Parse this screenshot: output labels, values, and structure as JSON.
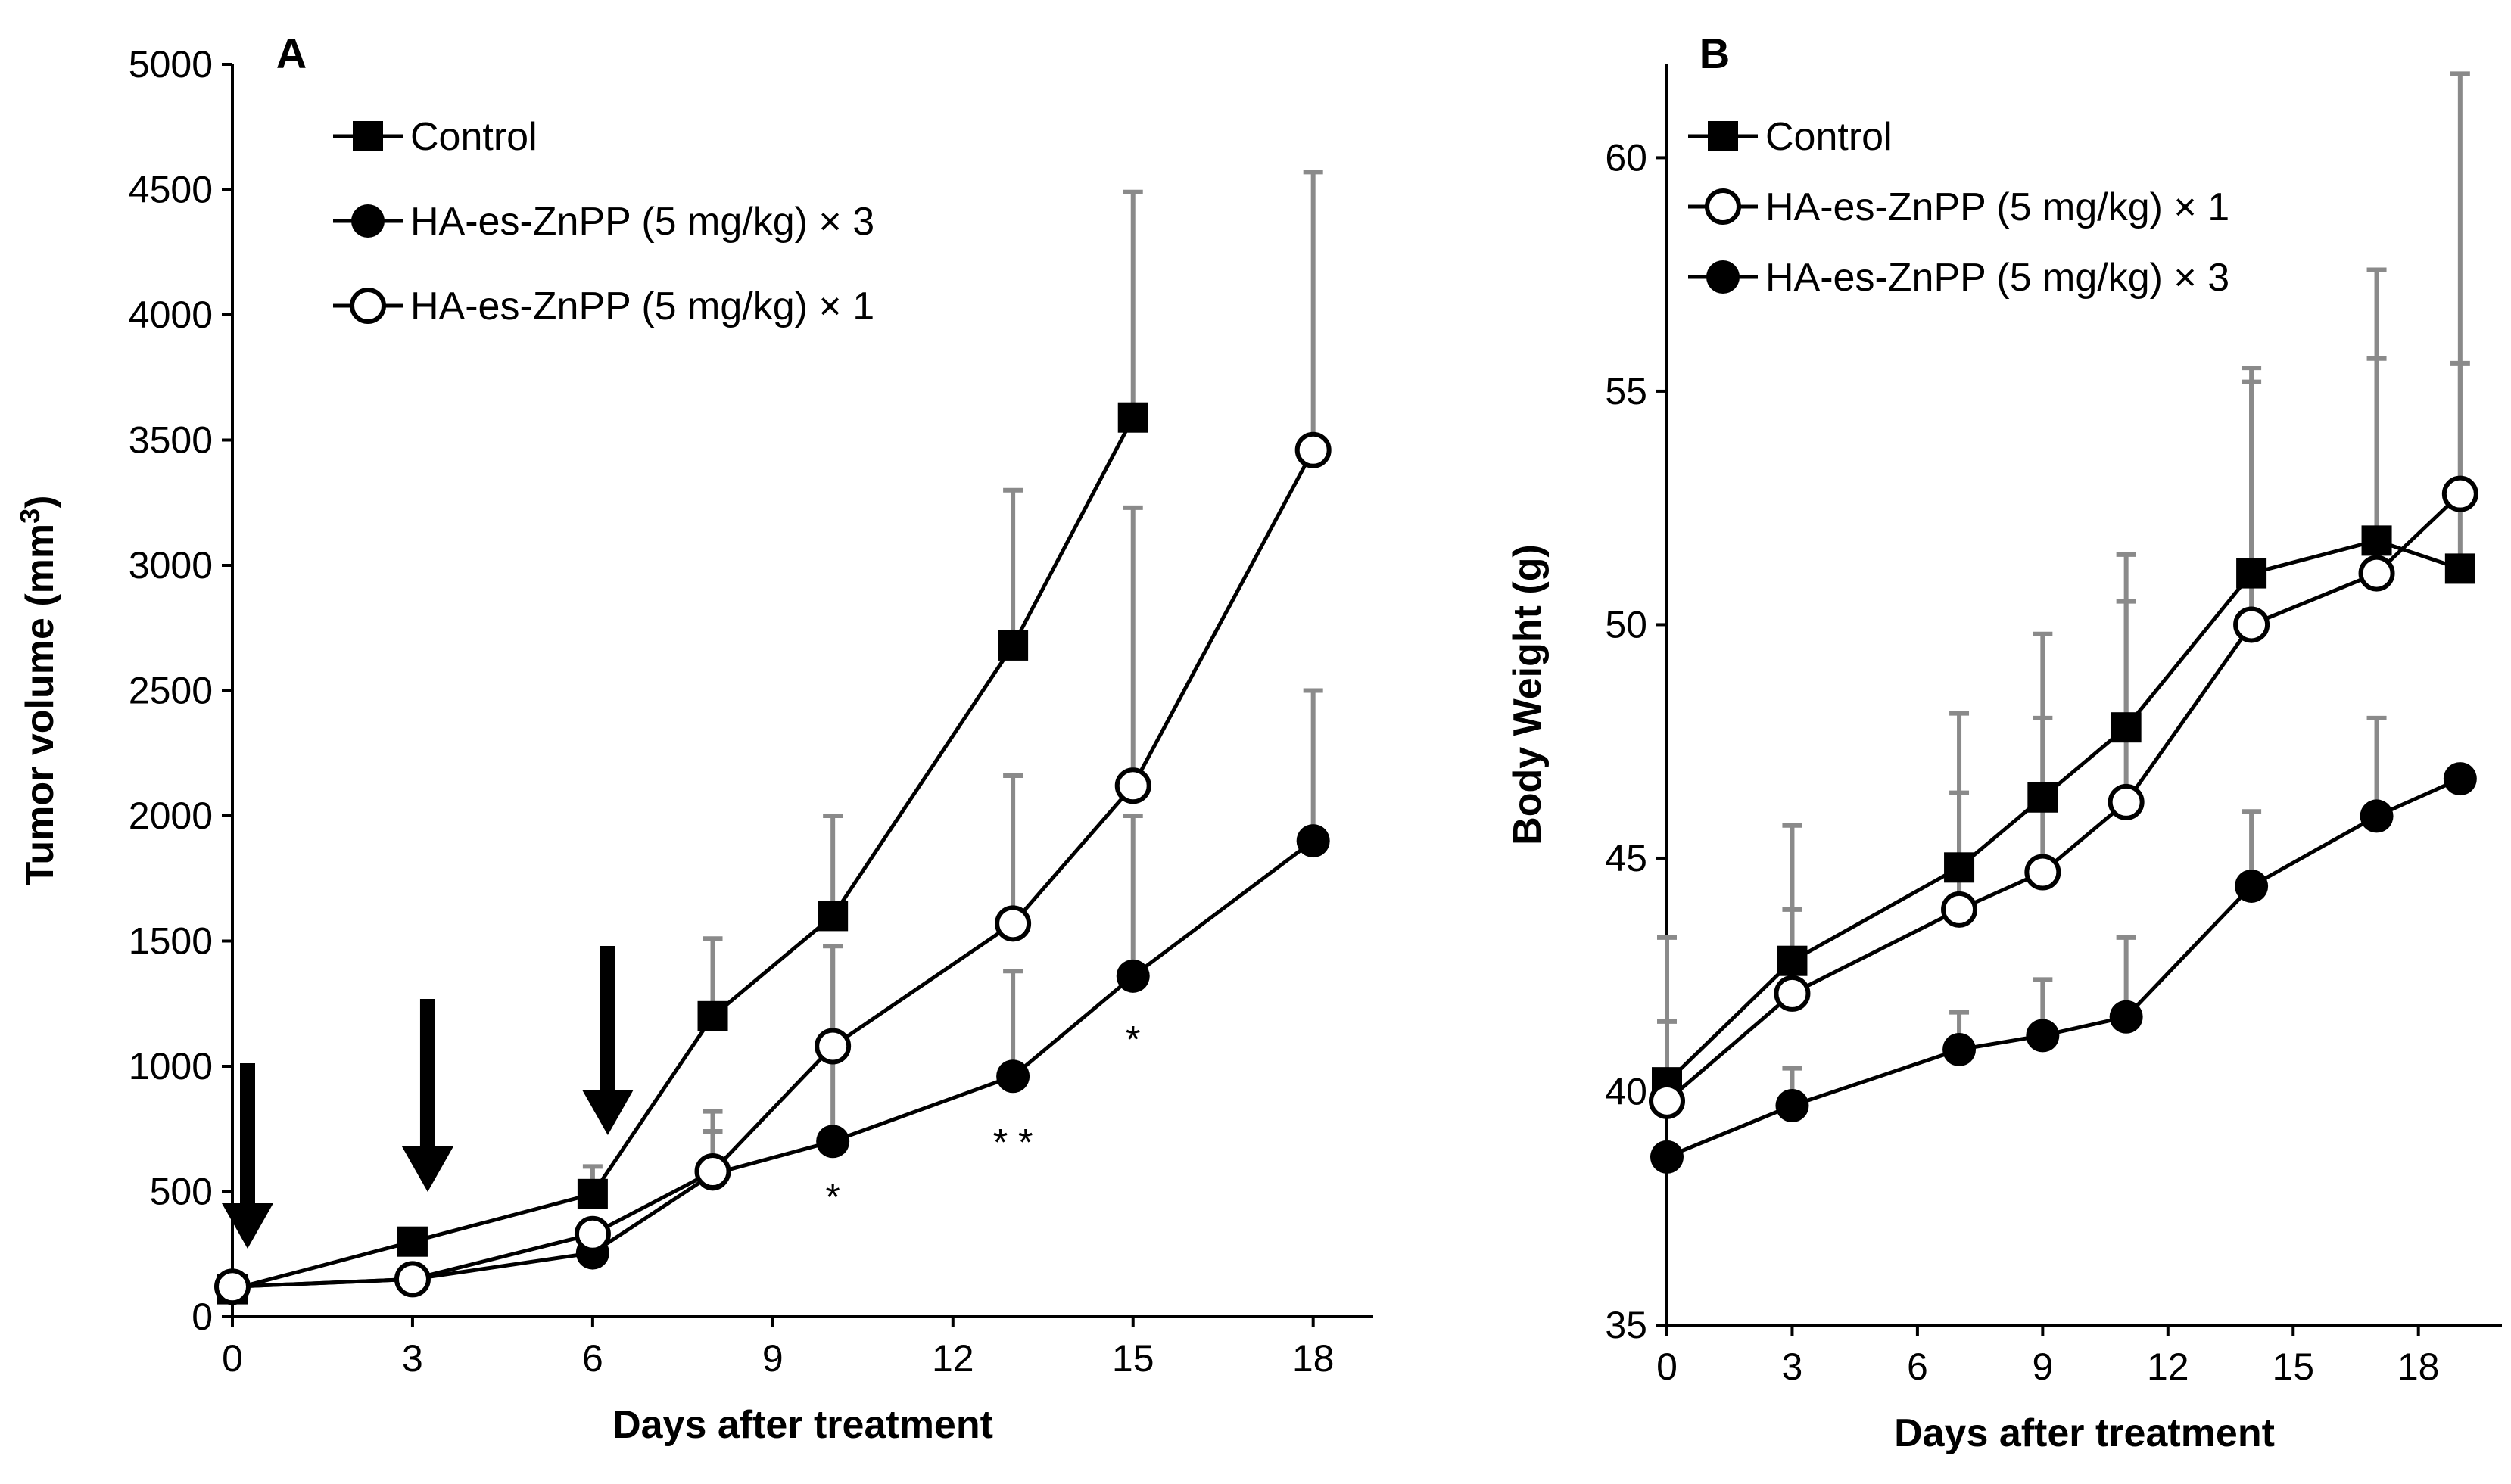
{
  "chart_data": [
    {
      "type": "line",
      "panel_label": "A",
      "title": "",
      "xlabel": "Days after treatment",
      "ylabel": "Tumor volume (mm³)",
      "ylabel_parts": {
        "main": "Tumor volume (mm",
        "sup": "3",
        "close": ")"
      },
      "xlim": [
        0,
        19
      ],
      "ylim": [
        0,
        5000
      ],
      "xticks": [
        0,
        3,
        6,
        9,
        12,
        15,
        18
      ],
      "yticks": [
        0,
        500,
        1000,
        1500,
        2000,
        2500,
        3000,
        3500,
        4000,
        4500,
        5000
      ],
      "legend_position": "top-left",
      "series": [
        {
          "name": "Control",
          "marker": "square-filled",
          "x": [
            0,
            3,
            6,
            8,
            10,
            13,
            15
          ],
          "y": [
            110,
            300,
            490,
            1200,
            1600,
            2680,
            3590
          ],
          "err": [
            0,
            0,
            110,
            310,
            400,
            620,
            900
          ]
        },
        {
          "name": "HA-es-ZnPP (5 mg/kg) × 3",
          "marker": "circle-filled",
          "x": [
            0,
            3,
            6,
            8,
            10,
            13,
            15,
            18
          ],
          "y": [
            120,
            150,
            255,
            570,
            700,
            960,
            1360,
            1900
          ],
          "err": [
            0,
            0,
            0,
            170,
            780,
            420,
            640,
            600
          ]
        },
        {
          "name": "HA-es-ZnPP (5 mg/kg) × 1",
          "marker": "circle-open",
          "x": [
            0,
            3,
            6,
            8,
            10,
            13,
            15,
            18
          ],
          "y": [
            120,
            150,
            330,
            580,
            1080,
            1570,
            2120,
            3460
          ],
          "err": [
            0,
            0,
            0,
            240,
            400,
            590,
            1110,
            1110
          ]
        }
      ],
      "arrows_at_days": [
        0,
        3,
        6
      ],
      "annotations": [
        {
          "text": "*",
          "x": 10,
          "y": 480
        },
        {
          "text": "* *",
          "x": 13,
          "y": 700
        },
        {
          "text": "*",
          "x": 15,
          "y": 1110
        }
      ]
    },
    {
      "type": "line",
      "panel_label": "B",
      "title": "",
      "xlabel": "Days after treatment",
      "ylabel": "Body Weight (g)",
      "xlim": [
        0,
        20
      ],
      "ylim": [
        35,
        62
      ],
      "xticks": [
        0,
        3,
        6,
        9,
        12,
        15,
        18
      ],
      "yticks": [
        35,
        40,
        45,
        50,
        55,
        60
      ],
      "legend_position": "top-left",
      "series": [
        {
          "name": "Control",
          "marker": "square-filled",
          "x": [
            0,
            3,
            7,
            9,
            11,
            14,
            17,
            19
          ],
          "y": [
            40.2,
            42.8,
            44.8,
            46.3,
            47.8,
            51.1,
            51.8,
            51.2
          ],
          "err": [
            3.1,
            2.9,
            3.3,
            3.5,
            3.7,
            4.4,
            5.8,
            10.6
          ]
        },
        {
          "name": "HA-es-ZnPP (5 mg/kg) × 1",
          "marker": "circle-open",
          "x": [
            0,
            3,
            7,
            9,
            11,
            14,
            17,
            19
          ],
          "y": [
            39.8,
            42.1,
            43.9,
            44.7,
            46.2,
            50.0,
            51.1,
            52.8
          ],
          "err": [
            1.7,
            1.8,
            2.5,
            3.3,
            4.3,
            5.2,
            4.6,
            2.8
          ]
        },
        {
          "name": "HA-es-ZnPP (5 mg/kg) × 3",
          "marker": "circle-filled",
          "x": [
            0,
            3,
            7,
            9,
            11,
            14,
            17,
            19
          ],
          "y": [
            38.6,
            39.7,
            40.9,
            41.2,
            41.6,
            44.4,
            45.9,
            46.7
          ],
          "err": [
            0,
            0.8,
            0.8,
            1.2,
            1.7,
            1.6,
            2.1,
            0
          ]
        }
      ]
    }
  ]
}
